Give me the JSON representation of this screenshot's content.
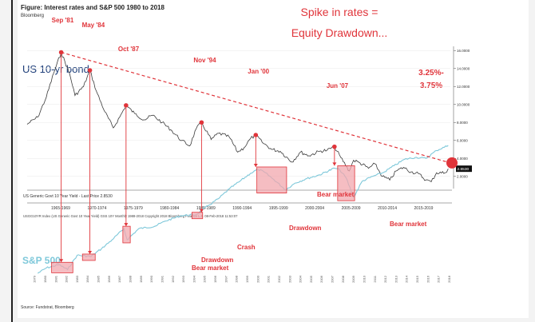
{
  "figure_title": "Figure: Interest rates and S&P 500 1980 to 2018",
  "figure_subtitle": "Bloomberg",
  "headline": [
    "Spike in rates =",
    "Equity Drawdown..."
  ],
  "source_note": "Source: Fundstrat, Bloomberg",
  "colors": {
    "bond": "#3a3a3a",
    "sp500": "#7ec8da",
    "accent": "#e0343a",
    "marker_fill": "#f2a7ad",
    "title_blue": "#1f3f7a"
  },
  "chart_data": [
    {
      "type": "line",
      "name": "US 10-yr bond",
      "label": "US 10-yr bond",
      "y_axis_label_values": [
        "16.0000",
        "14.0000",
        "12.0000",
        "10.0000",
        "8.0000",
        "6.0000",
        "4.0000",
        "2.0000"
      ],
      "y_range": [
        1,
        17
      ],
      "x_range": [
        1978.5,
        2018.3
      ],
      "last_price_label": "2.8530",
      "legend": "US Generic Govt 10 Year Yield - Last Price 2.8530",
      "period_labels": [
        "1965-1969",
        "1970-1974",
        "1975-1979",
        "1980-1984",
        "1985-1989",
        "1990-1994",
        "1995-1999",
        "2000-2004",
        "2005-2009",
        "2010-2014",
        "2015-2019"
      ],
      "footer_text": "USGG10YR Index (US Generic Govt 10 Year Yield) GSS 10Y  Monthly 1988-2018 Copyright 2018 Bloomberg Finance L.P.  08-Feb-2018 11:53:07",
      "x": [
        1978.5,
        1979.5,
        1980.3,
        1981.0,
        1981.7,
        1982.5,
        1983.0,
        1983.8,
        1984.4,
        1985.0,
        1985.8,
        1986.6,
        1987.2,
        1987.8,
        1988.6,
        1989.5,
        1990.3,
        1991.2,
        1992.0,
        1993.0,
        1993.8,
        1994.4,
        1994.9,
        1995.8,
        1996.5,
        1997.5,
        1998.3,
        1998.9,
        1999.5,
        2000.0,
        2000.6,
        2001.5,
        2002.3,
        2003.4,
        2004.2,
        2005.0,
        2006.0,
        2006.7,
        2007.4,
        2008.0,
        2008.8,
        2009.2,
        2009.8,
        2010.6,
        2011.2,
        2011.9,
        2012.6,
        2013.2,
        2013.9,
        2014.6,
        2015.3,
        2016.0,
        2016.5,
        2017.0,
        2017.8,
        2018.1
      ],
      "values": [
        7.8,
        8.6,
        10.8,
        13.5,
        15.8,
        13.4,
        11.0,
        12.0,
        13.8,
        11.5,
        9.2,
        7.4,
        8.6,
        9.9,
        9.0,
        8.3,
        8.8,
        8.0,
        7.2,
        6.0,
        5.4,
        7.3,
        8.0,
        6.1,
        6.8,
        6.4,
        4.7,
        5.2,
        6.2,
        6.6,
        5.8,
        5.0,
        4.8,
        3.6,
        4.7,
        4.3,
        4.8,
        4.9,
        5.3,
        4.1,
        2.6,
        3.8,
        3.5,
        2.9,
        3.4,
        2.0,
        1.6,
        2.6,
        3.0,
        2.5,
        2.3,
        1.6,
        1.4,
        2.4,
        2.4,
        2.85
      ]
    },
    {
      "type": "line",
      "name": "S&P 500",
      "label": "S&P 500",
      "x": [
        1979.5,
        1980.3,
        1981.5,
        1982.3,
        1983.2,
        1984.5,
        1985.5,
        1986.5,
        1987.6,
        1987.9,
        1989.0,
        1990.5,
        1991.5,
        1993.0,
        1994.4,
        1995.5,
        1996.5,
        1997.5,
        1998.5,
        1999.5,
        2000.2,
        2000.8,
        2001.7,
        2002.8,
        2003.7,
        2004.8,
        2006.0,
        2007.4,
        2007.9,
        2008.5,
        2009.2,
        2010.0,
        2011.0,
        2012.0,
        2013.0,
        2014.0,
        2015.0,
        2016.0,
        2017.0,
        2018.1
      ],
      "values": [
        100,
        115,
        125,
        110,
        160,
        155,
        190,
        240,
        320,
        240,
        320,
        340,
        390,
        450,
        460,
        580,
        700,
        900,
        1100,
        1350,
        1500,
        1400,
        1150,
        880,
        1050,
        1180,
        1300,
        1550,
        1480,
        1200,
        720,
        1100,
        1250,
        1380,
        1650,
        1950,
        2050,
        2000,
        2450,
        2800
      ],
      "y_range": [
        100,
        2800
      ]
    },
    {
      "type": "annotations",
      "rate_peaks": [
        {
          "label": "Sep '81",
          "x": 1981.7,
          "y": 15.8
        },
        {
          "label": "May '84",
          "x": 1984.4,
          "y": 13.8
        },
        {
          "label": "Oct '87",
          "x": 1987.8,
          "y": 9.9
        },
        {
          "label": "Nov '94",
          "x": 1994.9,
          "y": 8.0
        },
        {
          "label": "Jan '00",
          "x": 2000.0,
          "y": 6.6
        },
        {
          "label": "Jun '07",
          "x": 2007.4,
          "y": 5.3
        }
      ],
      "drawdowns": [
        {
          "label": "Bear market",
          "x0": 1980.8,
          "x1": 1982.8
        },
        {
          "label": "Drawdown",
          "x0": 1983.7,
          "x1": 1984.9
        },
        {
          "label": "Crash",
          "x0": 1987.5,
          "x1": 1988.2
        },
        {
          "label": "Drawdown",
          "x0": 1994.0,
          "x1": 1995.0
        },
        {
          "label": "Bear market",
          "x0": 2000.1,
          "x1": 2002.9
        },
        {
          "label": "Bear market",
          "x0": 2007.7,
          "x1": 2009.3
        }
      ],
      "target_label": [
        "3.25%-",
        "3.75%"
      ],
      "trendline": {
        "from": [
          1981.7,
          15.8
        ],
        "to": [
          2018.3,
          3.5
        ]
      }
    }
  ],
  "date_tick_labels": [
    "1979",
    "1980",
    "1981",
    "1982",
    "1983",
    "1984",
    "1985",
    "1986",
    "1987",
    "1988",
    "1989",
    "1990",
    "1991",
    "1992",
    "1993",
    "1994",
    "1995",
    "1996",
    "1997",
    "1998",
    "1999",
    "2000",
    "2001",
    "2002",
    "2003",
    "2004",
    "2005",
    "2006",
    "2007",
    "2008",
    "2009",
    "2010",
    "2011",
    "2012",
    "2013",
    "2014",
    "2015",
    "2016",
    "2017",
    "2018"
  ]
}
